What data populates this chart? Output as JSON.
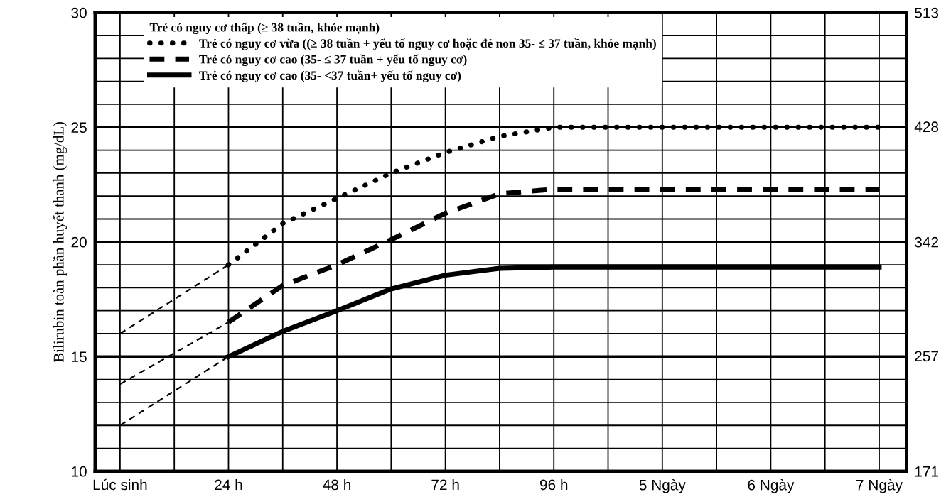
{
  "chart_data": {
    "type": "line",
    "ylabel": "Bilirubin toàn phần huyết thanh (mg/dL)",
    "legend_title": "Trẻ có nguy cơ thấp (≥ 38 tuần, khỏe mạnh)",
    "legend": "top left",
    "grid": true,
    "categories": [
      "Lúc sinh",
      null,
      "24 h",
      null,
      "48 h",
      null,
      "72 h",
      null,
      "96 h",
      null,
      "5 Ngày",
      null,
      "6 Ngày",
      null,
      "7 Ngày"
    ],
    "ylim": [
      10,
      30
    ],
    "yticks": [
      10,
      {
        "value": 11,
        "label": null
      },
      {
        "value": 12,
        "label": null
      },
      {
        "value": 13,
        "label": null
      },
      {
        "value": 14,
        "label": null
      },
      15,
      {
        "value": 16,
        "label": null
      },
      {
        "value": 17,
        "label": null
      },
      {
        "value": 18,
        "label": null
      },
      {
        "value": 19,
        "label": null
      },
      20,
      {
        "value": 21,
        "label": null
      },
      {
        "value": 22,
        "label": null
      },
      {
        "value": 23,
        "label": null
      },
      {
        "value": 24,
        "label": null
      },
      25,
      {
        "value": 26,
        "label": null
      },
      {
        "value": 27,
        "label": null
      },
      {
        "value": 28,
        "label": null
      },
      {
        "value": 29,
        "label": null
      },
      30
    ],
    "y2lim": [
      171,
      513
    ],
    "y2ticks": [
      171,
      257,
      342,
      428,
      513
    ],
    "series": [
      {
        "name": "Trẻ có nguy cơ vừa ((≥ 38 tuần + yếu tố nguy cơ hoặc đẻ non 35- ≤ 37 tuần, khỏe mạnh)",
        "color": "#000000",
        "line_style": "dotted",
        "values": [
          null,
          null,
          19.0,
          20.8,
          21.9,
          23.0,
          23.9,
          24.6,
          25.0,
          25.0,
          25.0,
          25.0,
          25.0,
          25.0,
          25.0
        ]
      },
      {
        "name": "Trẻ có nguy cơ cao (35- ≤ 37 tuần + yếu tố nguy cơ)",
        "color": "#000000",
        "line_style": "dashed",
        "values": [
          null,
          null,
          16.5,
          18.1,
          19.0,
          20.1,
          21.25,
          22.1,
          22.3,
          22.3,
          22.3,
          22.3,
          22.3,
          22.3,
          22.3
        ]
      },
      {
        "name": "Trẻ có nguy cơ cao (35- <37 tuần+ yếu tố nguy cơ)",
        "color": "#000000",
        "line_style": "solid",
        "values": [
          null,
          null,
          15.0,
          16.1,
          17.0,
          17.95,
          18.55,
          18.85,
          18.9,
          18.9,
          18.9,
          18.9,
          18.9,
          18.9,
          18.9
        ]
      },
      {
        "color": "#000000",
        "line_style": "dashed",
        "values": [
          16.0,
          17.5,
          19.0,
          null,
          null,
          null,
          null,
          null,
          null,
          null,
          null,
          null,
          null,
          null,
          null
        ]
      },
      {
        "color": "#000000",
        "line_style": "dashed",
        "values": [
          13.8,
          15.15,
          16.5,
          null,
          null,
          null,
          null,
          null,
          null,
          null,
          null,
          null,
          null,
          null,
          null
        ]
      },
      {
        "color": "#000000",
        "line_style": "dashed",
        "values": [
          12.0,
          13.5,
          15.0,
          null,
          null,
          null,
          null,
          null,
          null,
          null,
          null,
          null,
          null,
          null,
          null
        ]
      }
    ]
  }
}
